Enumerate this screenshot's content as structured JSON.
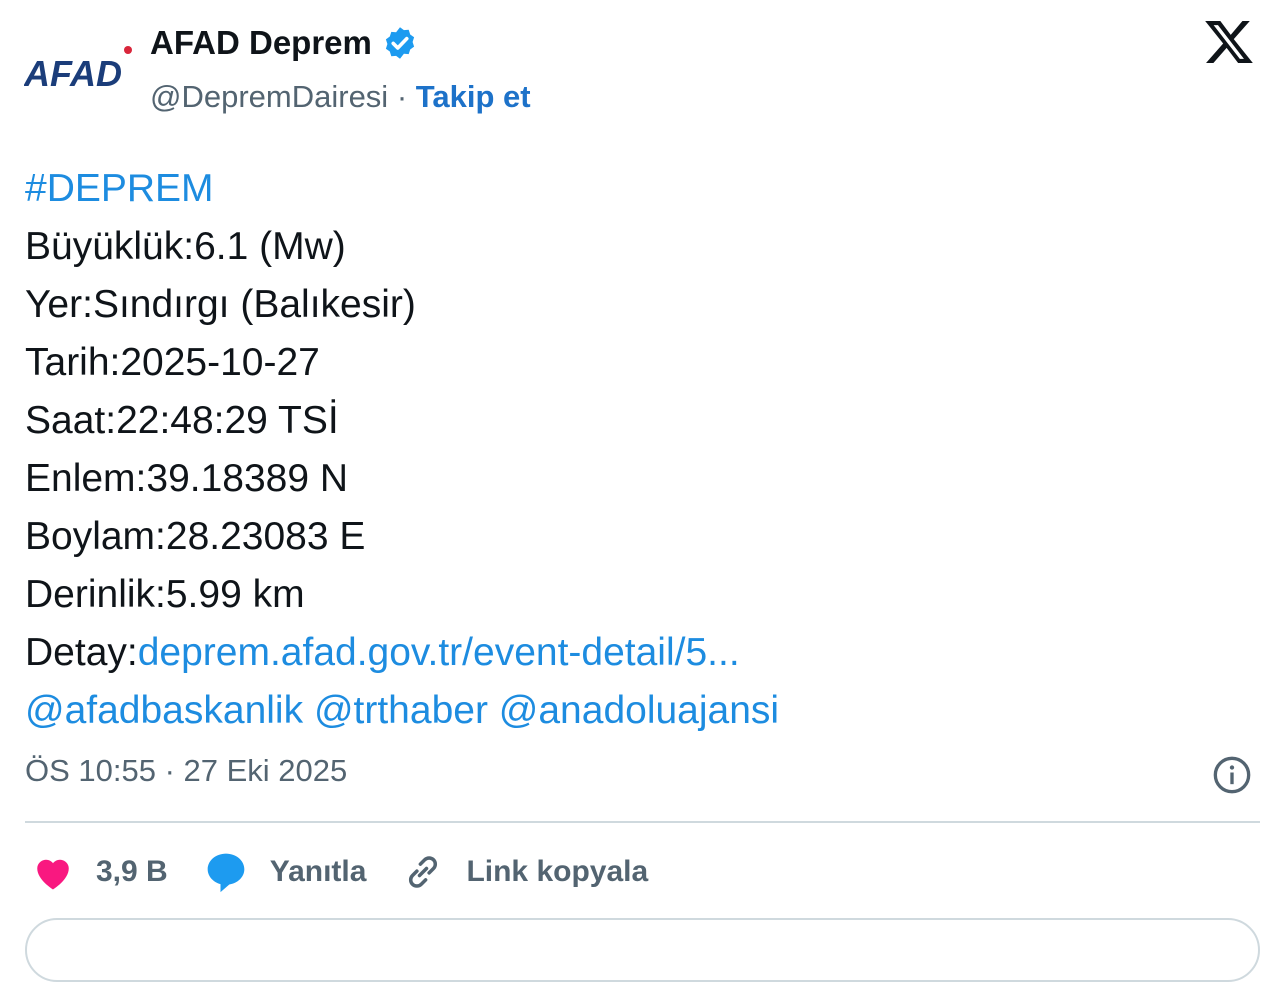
{
  "header": {
    "logo_text": "AFAD",
    "display_name": "AFAD Deprem",
    "verified": true,
    "handle": "@DepremDairesi",
    "separator": "·",
    "follow_label": "Takip et"
  },
  "tweet": {
    "hashtag": "#DEPREM",
    "lines": [
      "Büyüklük:6.1 (Mw)",
      "Yer:Sındırgı (Balıkesir)",
      "Tarih:2025-10-27",
      "Saat:22:48:29 TSİ",
      "Enlem:39.18389 N",
      "Boylam:28.23083 E",
      "Derinlik:5.99 km"
    ],
    "detail_label": "Detay:",
    "detail_link": "deprem.afad.gov.tr/event-detail/5...",
    "mentions": [
      "@afadbaskanlik",
      "@trthaber",
      "@anadoluajansi"
    ],
    "timestamp": "ÖS 10:55 · 27 Eki 2025"
  },
  "actions": {
    "likes": "3,9 B",
    "reply_label": "Yanıtla",
    "copy_link_label": "Link kopyala"
  },
  "colors": {
    "link": "#1d8ce0",
    "like": "#f91880",
    "verified": "#1d9bf0",
    "brand": "#1b3d7a"
  }
}
